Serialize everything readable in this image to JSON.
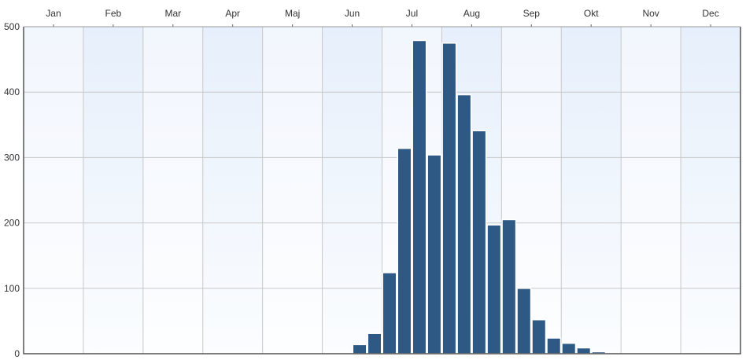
{
  "chart_data": {
    "type": "bar",
    "title": "",
    "xlabel": "",
    "ylabel": "",
    "month_labels": [
      "Jan",
      "Feb",
      "Mar",
      "Apr",
      "Maj",
      "Jun",
      "Jul",
      "Aug",
      "Sep",
      "Okt",
      "Nov",
      "Dec"
    ],
    "y_ticks": [
      0,
      100,
      200,
      300,
      400,
      500
    ],
    "ylim": [
      0,
      500
    ],
    "x_range_weeks": [
      0,
      48
    ],
    "bin_width_weeks": 1,
    "bins": [
      {
        "week_start": 22,
        "value": 14
      },
      {
        "week_start": 23,
        "value": 31
      },
      {
        "week_start": 24,
        "value": 124
      },
      {
        "week_start": 25,
        "value": 314
      },
      {
        "week_start": 26,
        "value": 479
      },
      {
        "week_start": 27,
        "value": 304
      },
      {
        "week_start": 28,
        "value": 475
      },
      {
        "week_start": 29,
        "value": 396
      },
      {
        "week_start": 30,
        "value": 341
      },
      {
        "week_start": 31,
        "value": 197
      },
      {
        "week_start": 32,
        "value": 205
      },
      {
        "week_start": 33,
        "value": 100
      },
      {
        "week_start": 34,
        "value": 52
      },
      {
        "week_start": 35,
        "value": 24
      },
      {
        "week_start": 36,
        "value": 16
      },
      {
        "week_start": 37,
        "value": 9
      },
      {
        "week_start": 38,
        "value": 3
      }
    ],
    "bar_color": "#2f5985",
    "grid": true,
    "legend": "none"
  }
}
